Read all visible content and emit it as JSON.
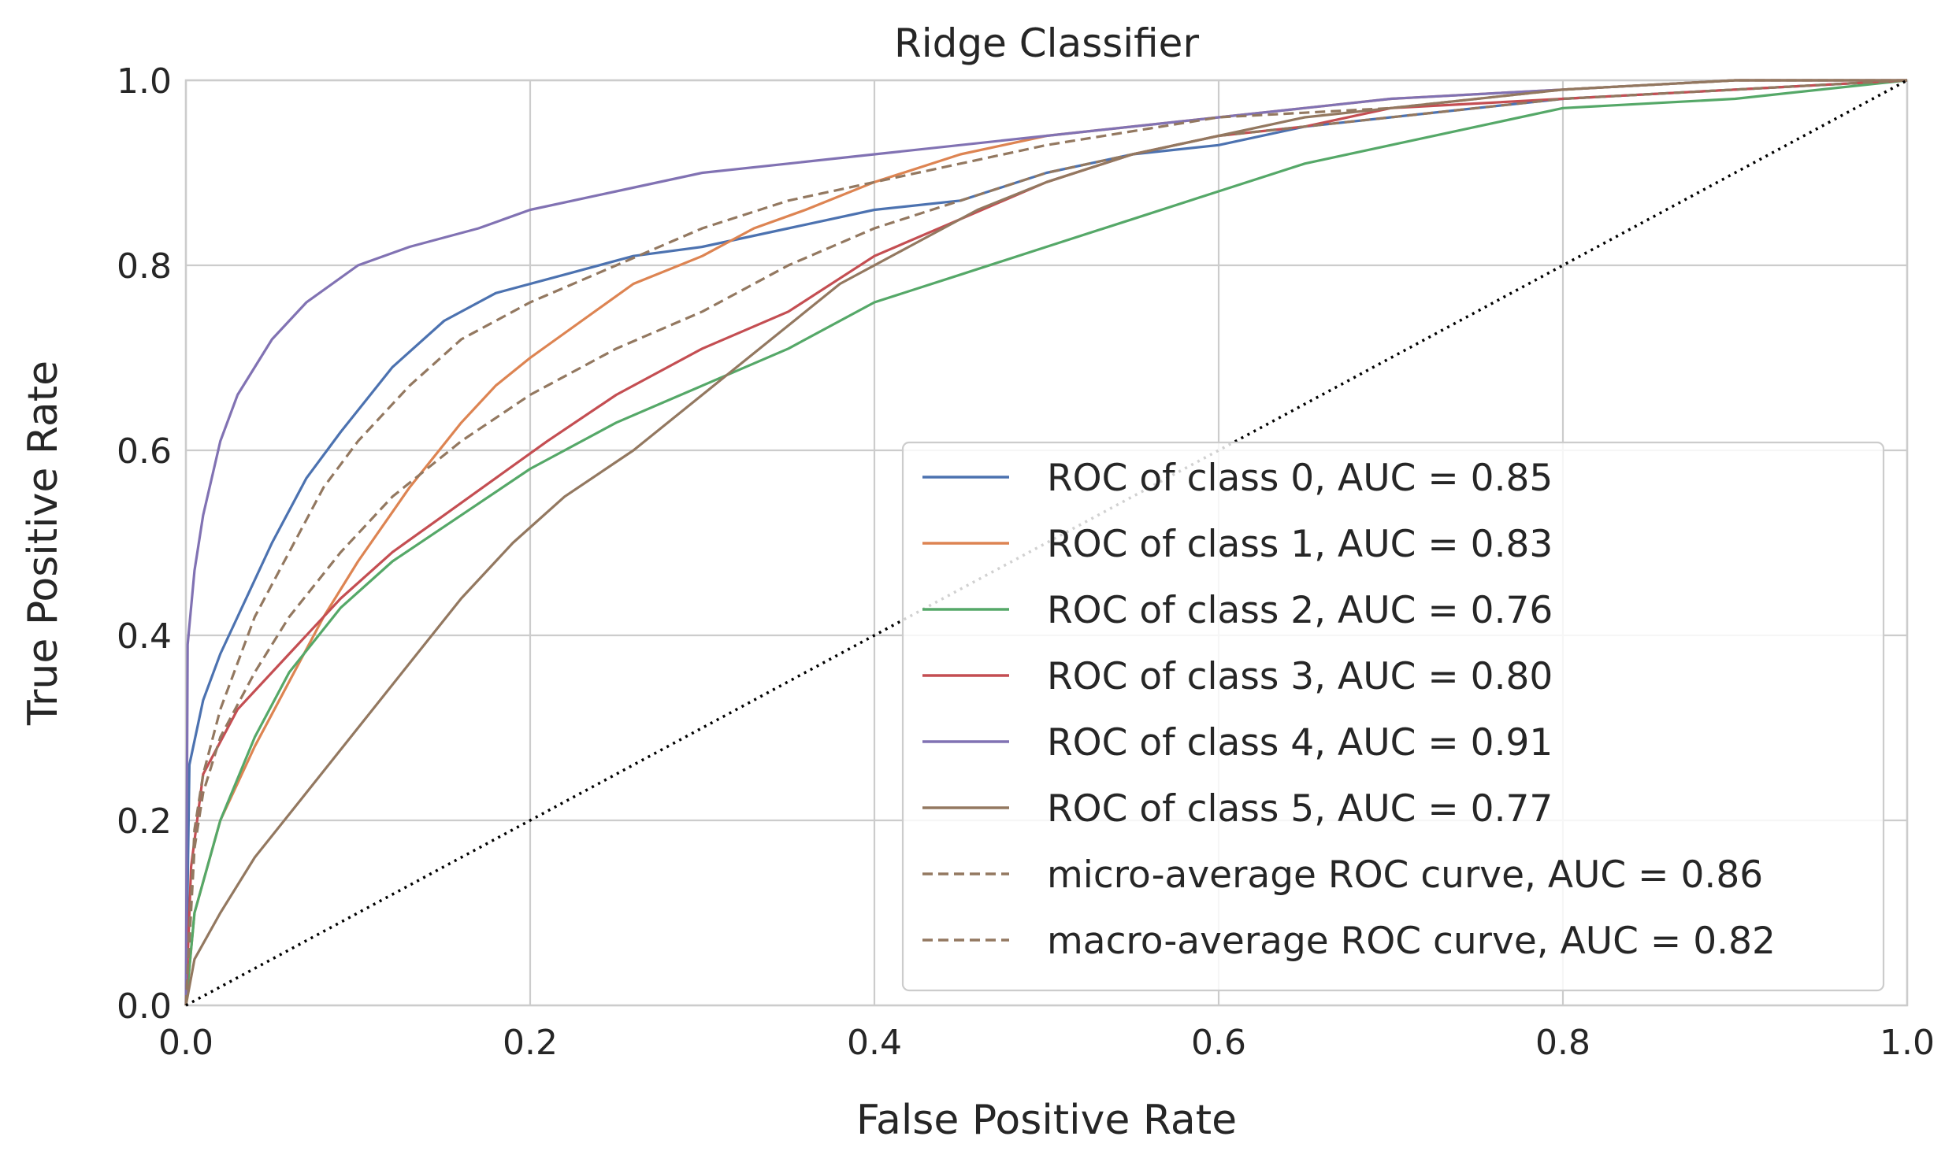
{
  "chart_data": {
    "type": "line",
    "title": "Ridge Classifier",
    "xlabel": "False Positive Rate",
    "ylabel": "True Positive Rate",
    "xlim": [
      0.0,
      1.0
    ],
    "ylim": [
      0.0,
      1.0
    ],
    "xticks": [
      "0.0",
      "0.2",
      "0.4",
      "0.6",
      "0.8",
      "1.0"
    ],
    "yticks": [
      "0.0",
      "0.2",
      "0.4",
      "0.6",
      "0.8",
      "1.0"
    ],
    "grid": true,
    "legend_position": "lower-right",
    "series": [
      {
        "name": "ROC of class 0, AUC = 0.85",
        "color": "#4c72b0",
        "dash": "solid",
        "x": [
          0,
          0.002,
          0.01,
          0.02,
          0.03,
          0.05,
          0.07,
          0.09,
          0.12,
          0.15,
          0.18,
          0.22,
          0.26,
          0.3,
          0.35,
          0.4,
          0.45,
          0.5,
          0.55,
          0.6,
          0.65,
          0.7,
          0.8,
          0.9,
          1.0
        ],
        "y": [
          0,
          0.26,
          0.33,
          0.38,
          0.42,
          0.5,
          0.57,
          0.62,
          0.69,
          0.74,
          0.77,
          0.79,
          0.81,
          0.82,
          0.84,
          0.86,
          0.87,
          0.9,
          0.92,
          0.93,
          0.95,
          0.96,
          0.98,
          0.99,
          1.0
        ]
      },
      {
        "name": "ROC of class 1, AUC = 0.83",
        "color": "#dd8452",
        "dash": "solid",
        "x": [
          0,
          0.005,
          0.02,
          0.04,
          0.06,
          0.08,
          0.1,
          0.13,
          0.16,
          0.18,
          0.2,
          0.23,
          0.26,
          0.3,
          0.33,
          0.36,
          0.4,
          0.45,
          0.5,
          0.6,
          0.7,
          0.8,
          0.9,
          1.0
        ],
        "y": [
          0,
          0.1,
          0.2,
          0.28,
          0.35,
          0.42,
          0.48,
          0.56,
          0.63,
          0.67,
          0.7,
          0.74,
          0.78,
          0.81,
          0.84,
          0.86,
          0.89,
          0.92,
          0.94,
          0.96,
          0.98,
          0.99,
          1.0,
          1.0
        ]
      },
      {
        "name": "ROC of class 2, AUC = 0.76",
        "color": "#55a868",
        "dash": "solid",
        "x": [
          0,
          0.005,
          0.02,
          0.04,
          0.06,
          0.09,
          0.12,
          0.16,
          0.2,
          0.25,
          0.3,
          0.35,
          0.4,
          0.45,
          0.5,
          0.55,
          0.6,
          0.65,
          0.7,
          0.75,
          0.8,
          0.9,
          1.0
        ],
        "y": [
          0,
          0.1,
          0.2,
          0.29,
          0.36,
          0.43,
          0.48,
          0.53,
          0.58,
          0.63,
          0.67,
          0.71,
          0.76,
          0.79,
          0.82,
          0.85,
          0.88,
          0.91,
          0.93,
          0.95,
          0.97,
          0.98,
          1.0
        ]
      },
      {
        "name": "ROC of class 3, AUC = 0.80",
        "color": "#c44e52",
        "dash": "solid",
        "x": [
          0,
          0.003,
          0.01,
          0.03,
          0.06,
          0.09,
          0.12,
          0.15,
          0.18,
          0.21,
          0.25,
          0.3,
          0.35,
          0.4,
          0.45,
          0.5,
          0.55,
          0.6,
          0.65,
          0.7,
          0.8,
          0.9,
          1.0
        ],
        "y": [
          0,
          0.15,
          0.25,
          0.32,
          0.38,
          0.44,
          0.49,
          0.53,
          0.57,
          0.61,
          0.66,
          0.71,
          0.75,
          0.81,
          0.85,
          0.89,
          0.92,
          0.94,
          0.95,
          0.97,
          0.98,
          0.99,
          1.0
        ]
      },
      {
        "name": "ROC of class 4, AUC = 0.91",
        "color": "#8172b3",
        "dash": "solid",
        "x": [
          0,
          0.001,
          0.005,
          0.01,
          0.02,
          0.03,
          0.05,
          0.07,
          0.1,
          0.13,
          0.17,
          0.2,
          0.25,
          0.3,
          0.35,
          0.4,
          0.5,
          0.6,
          0.7,
          0.8,
          0.9,
          1.0
        ],
        "y": [
          0,
          0.39,
          0.47,
          0.53,
          0.61,
          0.66,
          0.72,
          0.76,
          0.8,
          0.82,
          0.84,
          0.86,
          0.88,
          0.9,
          0.91,
          0.92,
          0.94,
          0.96,
          0.98,
          0.99,
          1.0,
          1.0
        ]
      },
      {
        "name": "ROC of class 5, AUC = 0.77",
        "color": "#937860",
        "dash": "solid",
        "x": [
          0,
          0.005,
          0.02,
          0.04,
          0.07,
          0.1,
          0.13,
          0.16,
          0.19,
          0.22,
          0.26,
          0.3,
          0.34,
          0.38,
          0.42,
          0.46,
          0.5,
          0.55,
          0.6,
          0.65,
          0.7,
          0.8,
          0.9,
          1.0
        ],
        "y": [
          0,
          0.05,
          0.1,
          0.16,
          0.23,
          0.3,
          0.37,
          0.44,
          0.5,
          0.55,
          0.6,
          0.66,
          0.72,
          0.78,
          0.82,
          0.86,
          0.89,
          0.92,
          0.94,
          0.96,
          0.97,
          0.99,
          1.0,
          1.0
        ]
      },
      {
        "name": "micro-average ROC curve, AUC = 0.86",
        "color": "#937860",
        "dash": "dashed",
        "x": [
          0,
          0.005,
          0.01,
          0.02,
          0.04,
          0.06,
          0.08,
          0.1,
          0.13,
          0.16,
          0.2,
          0.25,
          0.3,
          0.35,
          0.4,
          0.5,
          0.6,
          0.7,
          0.8,
          0.9,
          1.0
        ],
        "y": [
          0,
          0.19,
          0.25,
          0.32,
          0.42,
          0.49,
          0.56,
          0.61,
          0.67,
          0.72,
          0.76,
          0.8,
          0.84,
          0.87,
          0.89,
          0.93,
          0.96,
          0.97,
          0.99,
          1.0,
          1.0
        ]
      },
      {
        "name": "macro-average ROC curve, AUC = 0.82",
        "color": "#937860",
        "dash": "dashed",
        "x": [
          0,
          0.005,
          0.01,
          0.02,
          0.04,
          0.06,
          0.09,
          0.12,
          0.16,
          0.2,
          0.25,
          0.3,
          0.35,
          0.4,
          0.45,
          0.5,
          0.6,
          0.7,
          0.8,
          0.9,
          1.0
        ],
        "y": [
          0,
          0.17,
          0.23,
          0.29,
          0.36,
          0.42,
          0.49,
          0.55,
          0.61,
          0.66,
          0.71,
          0.75,
          0.8,
          0.84,
          0.87,
          0.9,
          0.94,
          0.96,
          0.98,
          0.99,
          1.0
        ]
      },
      {
        "name": "",
        "color": "#000000",
        "dash": "dotted",
        "x": [
          0,
          1
        ],
        "y": [
          0,
          1
        ]
      }
    ]
  }
}
